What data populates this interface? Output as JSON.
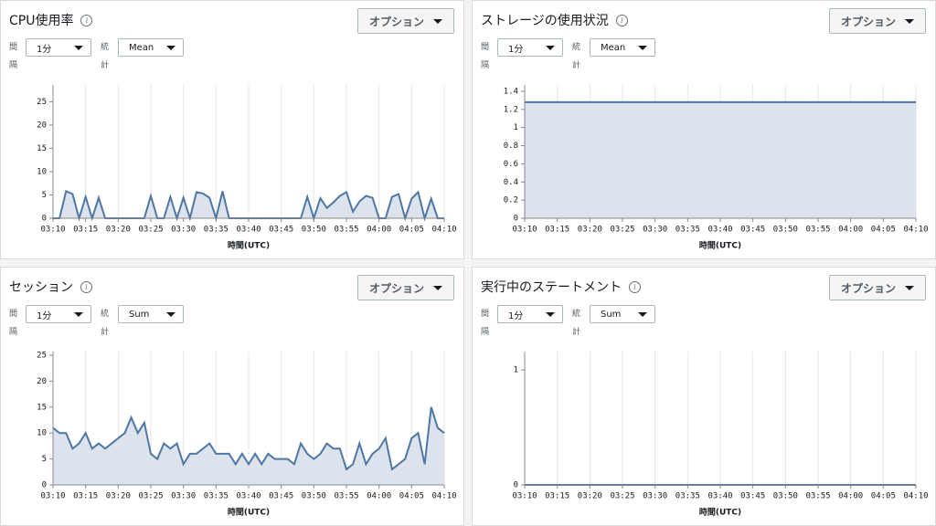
{
  "panels": [
    {
      "options": "オプション",
      "interval_label": "間隔",
      "interval": "1分",
      "stat_label": "統計",
      "stat": "Mean"
    },
    {
      "options": "オプション",
      "interval_label": "間隔",
      "interval": "1分",
      "stat_label": "統計",
      "stat": "Mean"
    },
    {
      "options": "オプション",
      "interval_label": "間隔",
      "interval": "1分",
      "stat_label": "統計",
      "stat": "Sum"
    },
    {
      "options": "オプション",
      "interval_label": "間隔",
      "interval": "1分",
      "stat_label": "統計",
      "stat": "Sum"
    }
  ],
  "chart_data": [
    {
      "type": "area",
      "title": "CPU使用率",
      "x_label": "時間(UTC)",
      "color": "#4e77a6",
      "fill": "#dce3ec",
      "x": [
        "03:10",
        "03:11",
        "03:12",
        "03:13",
        "03:14",
        "03:15",
        "03:16",
        "03:17",
        "03:18",
        "03:19",
        "03:20",
        "03:21",
        "03:22",
        "03:23",
        "03:24",
        "03:25",
        "03:26",
        "03:27",
        "03:28",
        "03:29",
        "03:30",
        "03:31",
        "03:32",
        "03:33",
        "03:34",
        "03:35",
        "03:36",
        "03:37",
        "03:38",
        "03:39",
        "03:40",
        "03:41",
        "03:42",
        "03:43",
        "03:44",
        "03:45",
        "03:46",
        "03:47",
        "03:48",
        "03:49",
        "03:50",
        "03:51",
        "03:52",
        "03:53",
        "03:54",
        "03:55",
        "03:56",
        "03:57",
        "03:58",
        "03:59",
        "04:00",
        "04:01",
        "04:02",
        "04:03",
        "04:04",
        "04:05",
        "04:06",
        "04:07",
        "04:08",
        "04:09",
        "04:10"
      ],
      "values": [
        0,
        0,
        5.8,
        5.2,
        0,
        4.6,
        0,
        4.4,
        0,
        0,
        0,
        0,
        0,
        0,
        0,
        4.8,
        0,
        0,
        4.6,
        0,
        4.4,
        0,
        5.6,
        5.3,
        4.4,
        0,
        5.8,
        0,
        0,
        0,
        0,
        0,
        0,
        0,
        0,
        0,
        0,
        0,
        0,
        4.6,
        0,
        4.3,
        2.2,
        3.4,
        4.8,
        5.6,
        1.4,
        3.6,
        4.8,
        4.4,
        0,
        0,
        4.6,
        5.2,
        0,
        4.2,
        5.6,
        0,
        4.2,
        0,
        0
      ],
      "xticks": [
        "03:10",
        "03:15",
        "03:20",
        "03:25",
        "03:30",
        "03:35",
        "03:40",
        "03:45",
        "03:50",
        "03:55",
        "04:00",
        "04:05",
        "04:10"
      ],
      "ylim": [
        0,
        28.6
      ],
      "yticks": [
        0,
        5,
        10,
        15,
        20,
        25
      ]
    },
    {
      "type": "area",
      "title": "ストレージの使用状況",
      "x_label": "時間(UTC)",
      "color": "#4e77a6",
      "fill": "#dce3ec",
      "x": [
        "03:10",
        "03:11",
        "03:12",
        "03:13",
        "03:14",
        "03:15",
        "03:16",
        "03:17",
        "03:18",
        "03:19",
        "03:20",
        "03:21",
        "03:22",
        "03:23",
        "03:24",
        "03:25",
        "03:26",
        "03:27",
        "03:28",
        "03:29",
        "03:30",
        "03:31",
        "03:32",
        "03:33",
        "03:34",
        "03:35",
        "03:36",
        "03:37",
        "03:38",
        "03:39",
        "03:40",
        "03:41",
        "03:42",
        "03:43",
        "03:44",
        "03:45",
        "03:46",
        "03:47",
        "03:48",
        "03:49",
        "03:50",
        "03:51",
        "03:52",
        "03:53",
        "03:54",
        "03:55",
        "03:56",
        "03:57",
        "03:58",
        "03:59",
        "04:00",
        "04:01",
        "04:02",
        "04:03",
        "04:04",
        "04:05",
        "04:06",
        "04:07",
        "04:08",
        "04:09",
        "04:10"
      ],
      "values": [
        1.28,
        1.28,
        1.28,
        1.28,
        1.28,
        1.28,
        1.28,
        1.28,
        1.28,
        1.28,
        1.28,
        1.28,
        1.28,
        1.28,
        1.28,
        1.28,
        1.28,
        1.28,
        1.28,
        1.28,
        1.28,
        1.28,
        1.28,
        1.28,
        1.28,
        1.28,
        1.28,
        1.28,
        1.28,
        1.28,
        1.28,
        1.28,
        1.28,
        1.28,
        1.28,
        1.28,
        1.28,
        1.28,
        1.28,
        1.28,
        1.28,
        1.28,
        1.28,
        1.28,
        1.28,
        1.28,
        1.28,
        1.28,
        1.28,
        1.28,
        1.28,
        1.28,
        1.28,
        1.28,
        1.28,
        1.28,
        1.28,
        1.28,
        1.28,
        1.28,
        1.28
      ],
      "xticks": [
        "03:10",
        "03:15",
        "03:20",
        "03:25",
        "03:30",
        "03:35",
        "03:40",
        "03:45",
        "03:50",
        "03:55",
        "04:00",
        "04:05",
        "04:10"
      ],
      "ylim": [
        0,
        1.47
      ],
      "yticks": [
        0,
        0.2,
        0.4,
        0.6,
        0.8,
        1,
        1.2,
        1.4
      ]
    },
    {
      "type": "area",
      "title": "セッション",
      "x_label": "時間(UTC)",
      "color": "#4e77a6",
      "fill": "#dce3ec",
      "x": [
        "03:10",
        "03:11",
        "03:12",
        "03:13",
        "03:14",
        "03:15",
        "03:16",
        "03:17",
        "03:18",
        "03:19",
        "03:20",
        "03:21",
        "03:22",
        "03:23",
        "03:24",
        "03:25",
        "03:26",
        "03:27",
        "03:28",
        "03:29",
        "03:30",
        "03:31",
        "03:32",
        "03:33",
        "03:34",
        "03:35",
        "03:36",
        "03:37",
        "03:38",
        "03:39",
        "03:40",
        "03:41",
        "03:42",
        "03:43",
        "03:44",
        "03:45",
        "03:46",
        "03:47",
        "03:48",
        "03:49",
        "03:50",
        "03:51",
        "03:52",
        "03:53",
        "03:54",
        "03:55",
        "03:56",
        "03:57",
        "03:58",
        "03:59",
        "04:00",
        "04:01",
        "04:02",
        "04:03",
        "04:04",
        "04:05",
        "04:06",
        "04:07",
        "04:08",
        "04:09",
        "04:10"
      ],
      "values": [
        11,
        10,
        10,
        7,
        8,
        10,
        7,
        8,
        7,
        8,
        9,
        10,
        13,
        10,
        12,
        6,
        5,
        8,
        7,
        8,
        4,
        6,
        6,
        7,
        8,
        6,
        6,
        6,
        4,
        6,
        4,
        6,
        4,
        6,
        5,
        5,
        5,
        4,
        8,
        6,
        5,
        6,
        8,
        7,
        7,
        3,
        4,
        8,
        4,
        6,
        7,
        9,
        3,
        4,
        5,
        9,
        10,
        4,
        15,
        11,
        10
      ],
      "xticks": [
        "03:10",
        "03:15",
        "03:20",
        "03:25",
        "03:30",
        "03:35",
        "03:40",
        "03:45",
        "03:50",
        "03:55",
        "04:00",
        "04:05",
        "04:10"
      ],
      "ylim": [
        0,
        25.7
      ],
      "yticks": [
        0,
        5,
        10,
        15,
        20,
        25
      ]
    },
    {
      "type": "area",
      "title": "実行中のステートメント",
      "x_label": "時間(UTC)",
      "color": "#4e77a6",
      "fill": "#dce3ec",
      "x": [
        "03:10",
        "03:11",
        "03:12",
        "03:13",
        "03:14",
        "03:15",
        "03:16",
        "03:17",
        "03:18",
        "03:19",
        "03:20",
        "03:21",
        "03:22",
        "03:23",
        "03:24",
        "03:25",
        "03:26",
        "03:27",
        "03:28",
        "03:29",
        "03:30",
        "03:31",
        "03:32",
        "03:33",
        "03:34",
        "03:35",
        "03:36",
        "03:37",
        "03:38",
        "03:39",
        "03:40",
        "03:41",
        "03:42",
        "03:43",
        "03:44",
        "03:45",
        "03:46",
        "03:47",
        "03:48",
        "03:49",
        "03:50",
        "03:51",
        "03:52",
        "03:53",
        "03:54",
        "03:55",
        "03:56",
        "03:57",
        "03:58",
        "03:59",
        "04:00",
        "04:01",
        "04:02",
        "04:03",
        "04:04",
        "04:05",
        "04:06",
        "04:07",
        "04:08",
        "04:09",
        "04:10"
      ],
      "values": [
        0,
        0,
        0,
        0,
        0,
        0,
        0,
        0,
        0,
        0,
        0,
        0,
        0,
        0,
        0,
        0,
        0,
        0,
        0,
        0,
        0,
        0,
        0,
        0,
        0,
        0,
        0,
        0,
        0,
        0,
        0,
        0,
        0,
        0,
        0,
        0,
        0,
        0,
        0,
        0,
        0,
        0,
        0,
        0,
        0,
        0,
        0,
        0,
        0,
        0,
        0,
        0,
        0,
        0,
        0,
        0,
        0,
        0,
        0,
        0,
        0
      ],
      "xticks": [
        "03:10",
        "03:15",
        "03:20",
        "03:25",
        "03:30",
        "03:35",
        "03:40",
        "03:45",
        "03:50",
        "03:55",
        "04:00",
        "04:05",
        "04:10"
      ],
      "ylim": [
        0,
        1.16
      ],
      "yticks": [
        0,
        1
      ]
    }
  ]
}
